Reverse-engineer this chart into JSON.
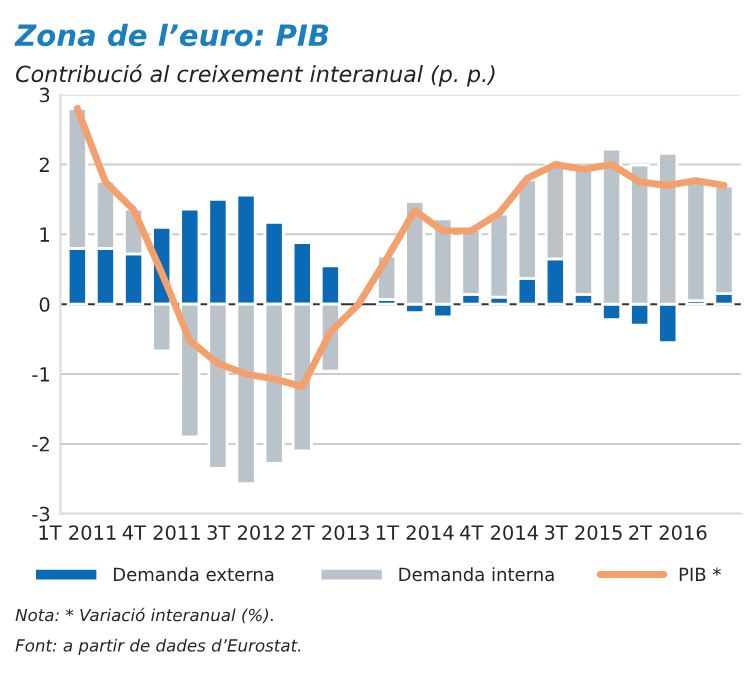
{
  "chart_data": {
    "type": "bar",
    "title": "Zona de l’euro: PIB",
    "subtitle": "Contribució al creixement interanual (p. p.)",
    "categories": [
      "1T 2011",
      null,
      null,
      "4T 2011",
      null,
      null,
      "3T 2012",
      null,
      null,
      "2T 2013",
      null,
      null,
      "1T 2014",
      null,
      null,
      "4T 2014",
      null,
      null,
      "3T 2015",
      null,
      null,
      "2T 2016",
      null,
      null
    ],
    "stacked": true,
    "series": [
      {
        "name": "Demanda externa",
        "color": "#0a6ab5",
        "values": [
          0.8,
          0.8,
          0.72,
          1.1,
          1.36,
          1.5,
          1.56,
          1.17,
          0.88,
          0.55,
          null,
          0.07,
          -0.12,
          -0.18,
          0.14,
          0.1,
          0.37,
          0.65,
          0.14,
          -0.22,
          -0.3,
          -0.55,
          0.05,
          0.15
        ]
      },
      {
        "name": "Demanda interna",
        "color": "#b9c3c9",
        "values": [
          2.0,
          0.96,
          0.64,
          -0.67,
          -1.9,
          -2.35,
          -2.57,
          -2.28,
          -2.1,
          -0.96,
          null,
          0.62,
          1.47,
          1.22,
          0.93,
          1.19,
          1.41,
          1.35,
          1.79,
          2.22,
          1.99,
          2.16,
          1.71,
          1.54
        ]
      },
      {
        "name": "PIB *",
        "type": "line",
        "color": "#f4a06c",
        "values": [
          2.8,
          1.75,
          1.35,
          0.45,
          -0.52,
          -0.85,
          -1.0,
          -1.07,
          -1.18,
          -0.4,
          0.0,
          0.65,
          1.34,
          1.05,
          1.05,
          1.3,
          1.8,
          2.0,
          1.93,
          2.0,
          1.75,
          1.7,
          1.77,
          1.7
        ]
      }
    ],
    "ylim": [
      -3,
      3
    ],
    "yticks": [
      -3,
      -2,
      -1,
      0,
      1,
      2,
      3
    ],
    "grid": "y",
    "legend": "bottom",
    "annotations": [
      "Nota: * Variació interanual (%).",
      "Font: a partir de dades d’Eurostat."
    ]
  }
}
